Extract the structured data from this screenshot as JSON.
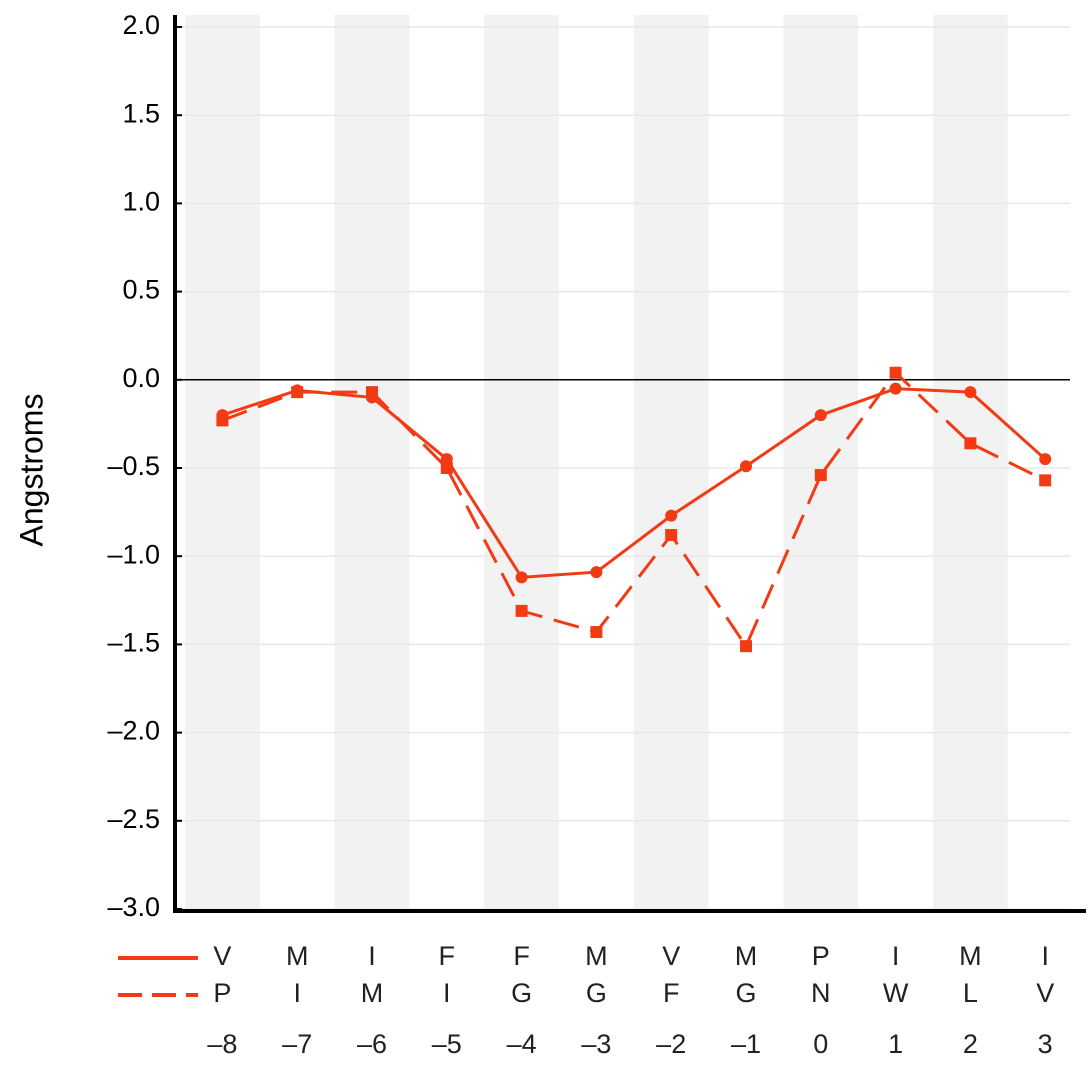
{
  "chart_data": {
    "type": "line",
    "y_label": "Angstroms",
    "categories": [
      "–8",
      "–7",
      "–6",
      "–5",
      "–4",
      "–3",
      "–2",
      "–1",
      "0",
      "1",
      "2",
      "3"
    ],
    "series": [
      {
        "residues": [
          "V",
          "M",
          "I",
          "F",
          "F",
          "M",
          "V",
          "M",
          "P",
          "I",
          "M",
          "I"
        ],
        "color": "#f23a14",
        "dash": false,
        "marker": "circle",
        "values": [
          -0.2,
          -0.06,
          -0.1,
          -0.45,
          -1.12,
          -1.09,
          -0.77,
          -0.49,
          -0.2,
          -0.05,
          -0.07,
          -0.45
        ]
      },
      {
        "residues": [
          "P",
          "I",
          "M",
          "I",
          "G",
          "G",
          "F",
          "G",
          "N",
          "W",
          "L",
          "V"
        ],
        "color": "#f23a14",
        "dash": true,
        "marker": "square",
        "values": [
          -0.23,
          -0.07,
          -0.07,
          -0.5,
          -1.31,
          -1.43,
          -0.88,
          -1.51,
          -0.54,
          0.04,
          -0.36,
          -0.57
        ]
      }
    ],
    "ylim": [
      -3.0,
      2.0
    ],
    "yticks": [
      {
        "value": 2.0,
        "label": "2.0"
      },
      {
        "value": 1.5,
        "label": "1.5"
      },
      {
        "value": 1.0,
        "label": "1.0"
      },
      {
        "value": 0.5,
        "label": "0.5"
      },
      {
        "value": 0.0,
        "label": "0.0"
      },
      {
        "value": -0.5,
        "label": "–0.5"
      },
      {
        "value": -1.0,
        "label": "–1.0"
      },
      {
        "value": -1.5,
        "label": "–1.5"
      },
      {
        "value": -2.0,
        "label": "–2.0"
      },
      {
        "value": -2.5,
        "label": "–2.5"
      },
      {
        "value": -3.0,
        "label": "–3.0"
      }
    ],
    "grid": true,
    "alternate_bands": true
  }
}
